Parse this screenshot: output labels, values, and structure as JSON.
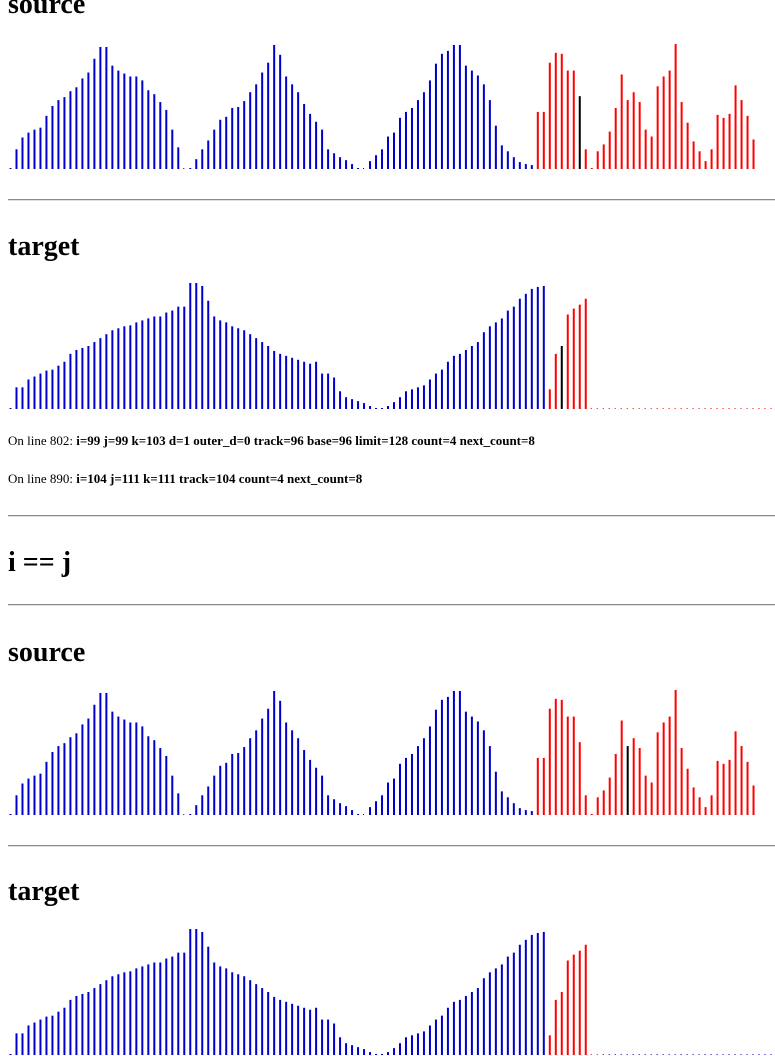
{
  "colors": {
    "unsorted": "#0000cc",
    "active": "#ff0000",
    "cursor": "#000000"
  },
  "headings": {
    "source1": "source",
    "target1": "target",
    "case": "i == j",
    "source2": "source",
    "target2": "target"
  },
  "status": {
    "line802_prefix": "On line 802:",
    "line802_vars": "i=99 j=99 k=103 d=1 outer_d=0 track=96 base=96 limit=128 count=4 next_count=8",
    "line890_prefix": "On line 890:",
    "line890_vars": "i=104 j=111 k=111 track=104 count=4 next_count=8"
  },
  "chart_data": [
    {
      "type": "bar",
      "name": "source-1",
      "ylim": [
        0,
        128
      ],
      "values": [
        1,
        20,
        32,
        37,
        40,
        42,
        54,
        64,
        70,
        73,
        79,
        83,
        92,
        98,
        112,
        124,
        124,
        105,
        100,
        97,
        94,
        94,
        90,
        80,
        76,
        68,
        60,
        40,
        22,
        0,
        1,
        10,
        20,
        29,
        40,
        50,
        53,
        62,
        63,
        69,
        78,
        86,
        98,
        108,
        126,
        116,
        94,
        86,
        78,
        66,
        56,
        48,
        40,
        20,
        16,
        12,
        9,
        5,
        1,
        0,
        8,
        14,
        20,
        33,
        37,
        52,
        58,
        62,
        70,
        78,
        90,
        107,
        117,
        120,
        126,
        126,
        105,
        100,
        95,
        86,
        70,
        44,
        24,
        18,
        12,
        7,
        5,
        4,
        58,
        58,
        108,
        118,
        117,
        100,
        100,
        74,
        20,
        1,
        18,
        25,
        38,
        62,
        96,
        70,
        78,
        68,
        40,
        33,
        84,
        94,
        100,
        127,
        68,
        47,
        28,
        18,
        8,
        20,
        55,
        52,
        56,
        85,
        70,
        54,
        30
      ],
      "colors": "0-87:blue,88-127:red,95:black"
    },
    {
      "type": "bar",
      "name": "target-1",
      "ylim": [
        0,
        128
      ],
      "values": [
        1,
        22,
        22,
        30,
        33,
        36,
        39,
        40,
        44,
        48,
        56,
        60,
        62,
        64,
        68,
        72,
        76,
        80,
        82,
        84,
        85,
        88,
        90,
        92,
        94,
        94,
        98,
        100,
        104,
        104,
        128,
        128,
        125,
        110,
        94,
        90,
        88,
        84,
        82,
        80,
        76,
        72,
        68,
        64,
        59,
        56,
        54,
        52,
        50,
        48,
        46,
        48,
        36,
        36,
        32,
        18,
        12,
        10,
        8,
        6,
        3,
        1,
        1,
        3,
        7,
        12,
        18,
        20,
        22,
        24,
        30,
        36,
        40,
        48,
        54,
        56,
        60,
        64,
        68,
        78,
        84,
        88,
        92,
        100,
        104,
        112,
        117,
        122,
        124,
        125,
        20,
        56,
        64,
        96,
        102,
        106,
        112,
        0,
        0,
        0,
        0,
        0,
        0,
        0,
        0,
        0,
        0,
        0,
        0,
        0,
        0,
        0,
        0,
        0,
        0,
        0,
        0,
        0,
        0,
        0,
        0,
        0,
        0,
        0,
        0,
        0,
        0,
        0
      ],
      "colors": "0-89:blue,90-96:red,92:black,97-127:red-dotted"
    },
    {
      "type": "bar",
      "name": "source-2",
      "ylim": [
        0,
        128
      ],
      "values": [
        1,
        20,
        32,
        37,
        40,
        42,
        54,
        64,
        70,
        73,
        79,
        83,
        92,
        98,
        112,
        124,
        124,
        105,
        100,
        97,
        94,
        94,
        90,
        80,
        76,
        68,
        60,
        40,
        22,
        0,
        1,
        10,
        20,
        29,
        40,
        50,
        53,
        62,
        63,
        69,
        78,
        86,
        98,
        108,
        126,
        116,
        94,
        86,
        78,
        66,
        56,
        48,
        40,
        20,
        16,
        12,
        9,
        5,
        1,
        0,
        8,
        14,
        20,
        33,
        37,
        52,
        58,
        62,
        70,
        78,
        90,
        107,
        117,
        120,
        126,
        126,
        105,
        100,
        95,
        86,
        70,
        44,
        24,
        18,
        12,
        7,
        5,
        4,
        58,
        58,
        108,
        118,
        117,
        100,
        100,
        74,
        20,
        1,
        18,
        25,
        38,
        62,
        96,
        70,
        78,
        68,
        40,
        33,
        84,
        94,
        100,
        127,
        68,
        47,
        28,
        18,
        8,
        20,
        55,
        52,
        56,
        85,
        70,
        54,
        30
      ],
      "colors": "0-87:blue,88-127:red,103:black"
    },
    {
      "type": "bar",
      "name": "target-2",
      "ylim": [
        0,
        128
      ],
      "values": [
        1,
        22,
        22,
        30,
        33,
        36,
        39,
        40,
        44,
        48,
        56,
        60,
        62,
        64,
        68,
        72,
        76,
        80,
        82,
        84,
        85,
        88,
        90,
        92,
        94,
        94,
        98,
        100,
        104,
        104,
        128,
        128,
        125,
        110,
        94,
        90,
        88,
        84,
        82,
        80,
        76,
        72,
        68,
        64,
        59,
        56,
        54,
        52,
        50,
        48,
        46,
        48,
        36,
        36,
        32,
        18,
        12,
        10,
        8,
        6,
        3,
        1,
        1,
        3,
        7,
        12,
        18,
        20,
        22,
        24,
        30,
        36,
        40,
        48,
        54,
        56,
        60,
        64,
        68,
        78,
        84,
        88,
        92,
        100,
        104,
        112,
        117,
        122,
        124,
        125,
        20,
        56,
        64,
        96,
        102,
        106,
        112,
        0,
        0,
        0,
        0,
        0,
        0,
        0,
        0,
        0,
        0,
        0,
        0,
        0,
        0,
        0,
        0,
        0,
        0,
        0,
        0,
        0,
        0,
        0,
        0,
        0,
        0,
        0,
        0,
        0,
        0,
        0
      ],
      "colors": "0-89:blue,90-96:red,97-98:red"
    }
  ]
}
